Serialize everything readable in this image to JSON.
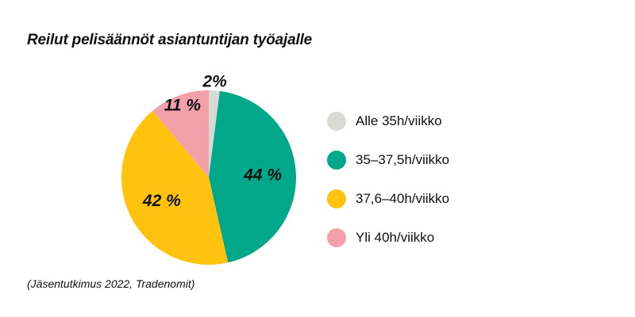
{
  "title": "Reilut pelisäännöt asiantuntijan työajalle",
  "source": "(Jäsentutkimus 2022, Tradenomit)",
  "chart_data": {
    "type": "pie",
    "title": "Reilut pelisäännöt asiantuntijan työajalle",
    "slices": [
      {
        "name": "Alle 35h/viikko",
        "value": 2,
        "label": "2%",
        "color": "#d9d9d6"
      },
      {
        "name": "35–37,5h/viikko",
        "value": 44,
        "label": "44 %",
        "color": "#00a88a"
      },
      {
        "name": "37,6–40h/viikko",
        "value": 42,
        "label": "42 %",
        "color": "#ffc20e"
      },
      {
        "name": "Yli 40h/viikko",
        "value": 11,
        "label": "11 %",
        "color": "#f4a0aa"
      }
    ],
    "legend_position": "right"
  }
}
